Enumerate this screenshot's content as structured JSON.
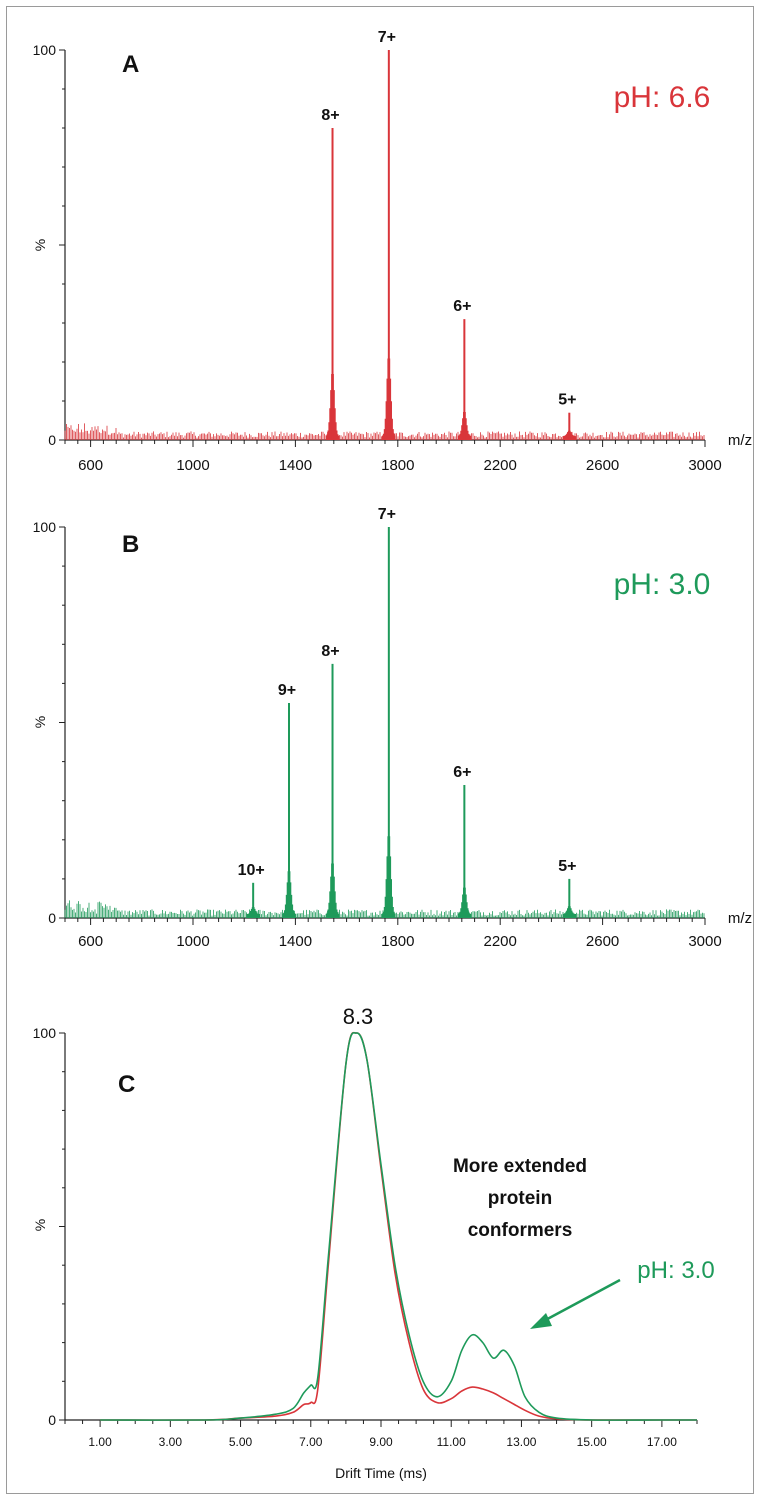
{
  "chart_data": [
    {
      "type": "line",
      "panel_label": "A",
      "condition_label": "pH: 6.6",
      "color": "#d9353a",
      "xlabel": "m/z",
      "ylabel": "%",
      "xlim": [
        500,
        3000
      ],
      "ylim": [
        0,
        100
      ],
      "x_ticks": [
        600,
        1000,
        1400,
        1800,
        2200,
        2600,
        3000
      ],
      "y_ticks": [
        0,
        100
      ],
      "peaks": [
        {
          "label": "8+",
          "mz": 1545,
          "intensity": 80
        },
        {
          "label": "7+",
          "mz": 1765,
          "intensity": 100
        },
        {
          "label": "6+",
          "mz": 2060,
          "intensity": 31
        },
        {
          "label": "5+",
          "mz": 2470,
          "intensity": 7
        }
      ]
    },
    {
      "type": "line",
      "panel_label": "B",
      "condition_label": "pH: 3.0",
      "color": "#1e9a5a",
      "xlabel": "m/z",
      "ylabel": "%",
      "xlim": [
        500,
        3000
      ],
      "ylim": [
        0,
        100
      ],
      "x_ticks": [
        600,
        1000,
        1400,
        1800,
        2200,
        2600,
        3000
      ],
      "y_ticks": [
        0,
        100
      ],
      "peaks": [
        {
          "label": "10+",
          "mz": 1235,
          "intensity": 9
        },
        {
          "label": "9+",
          "mz": 1375,
          "intensity": 55
        },
        {
          "label": "8+",
          "mz": 1545,
          "intensity": 65
        },
        {
          "label": "7+",
          "mz": 1765,
          "intensity": 100
        },
        {
          "label": "6+",
          "mz": 2060,
          "intensity": 34
        },
        {
          "label": "5+",
          "mz": 2470,
          "intensity": 10
        }
      ]
    },
    {
      "type": "line",
      "panel_label": "C",
      "xlabel": "Drift Time (ms)",
      "ylabel": "%",
      "xlim": [
        0,
        18
      ],
      "ylim": [
        0,
        100
      ],
      "x_ticks": [
        1,
        3,
        5,
        7,
        9,
        11,
        13,
        15,
        17
      ],
      "x_tick_labels": [
        "1.00",
        "3.00",
        "5.00",
        "7.00",
        "9.00",
        "11.00",
        "13.00",
        "15.00",
        "17.00"
      ],
      "y_ticks": [
        0,
        100
      ],
      "peak_annotation": "8.3",
      "annotation": [
        "More extended",
        "protein",
        "conformers"
      ],
      "arrow_label": "pH: 3.0",
      "series": [
        {
          "color": "#d9353a",
          "x": [
            1,
            4,
            5,
            6,
            6.5,
            6.8,
            7.0,
            7.2,
            7.5,
            8.0,
            8.3,
            8.6,
            9.0,
            9.4,
            9.8,
            10.2,
            10.6,
            11.0,
            11.3,
            11.6,
            11.9,
            12.2,
            12.5,
            12.8,
            13.1,
            13.5,
            14.0,
            15,
            17,
            18
          ],
          "y": [
            0,
            0,
            0.5,
            1,
            2,
            4,
            4.5,
            8,
            40,
            92,
            100,
            93,
            65,
            38,
            20,
            8,
            4.5,
            5.5,
            7.5,
            8.5,
            8,
            7,
            5.5,
            4,
            2.5,
            1,
            0.3,
            0,
            0,
            0
          ]
        },
        {
          "color": "#1e9a5a",
          "x": [
            1,
            4,
            5,
            6,
            6.5,
            6.8,
            7.0,
            7.2,
            7.5,
            8.0,
            8.3,
            8.6,
            9.0,
            9.4,
            9.8,
            10.2,
            10.6,
            11.0,
            11.3,
            11.6,
            11.9,
            12.2,
            12.5,
            12.8,
            13.1,
            13.5,
            14.0,
            15,
            17,
            18
          ],
          "y": [
            0,
            0,
            0.5,
            1.5,
            3,
            7,
            9,
            11,
            42,
            92,
            100,
            93,
            66,
            40,
            22,
            10,
            6,
            10,
            18,
            22,
            20,
            16,
            18,
            14,
            6,
            2,
            0.5,
            0,
            0,
            0
          ]
        }
      ]
    }
  ]
}
